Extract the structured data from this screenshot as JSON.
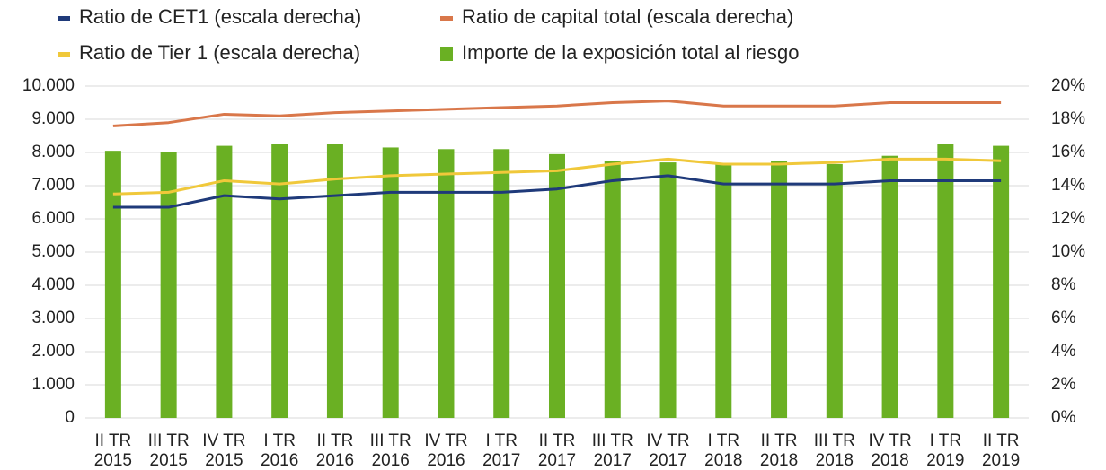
{
  "chart_data": {
    "type": "bar-line",
    "categories": [
      [
        "II TR",
        "2015"
      ],
      [
        "III TR",
        "2015"
      ],
      [
        "IV TR",
        "2015"
      ],
      [
        "I TR",
        "2016"
      ],
      [
        "II TR",
        "2016"
      ],
      [
        "III TR",
        "2016"
      ],
      [
        "IV TR",
        "2016"
      ],
      [
        "I TR",
        "2017"
      ],
      [
        "II TR",
        "2017"
      ],
      [
        "III TR",
        "2017"
      ],
      [
        "IV TR",
        "2017"
      ],
      [
        "I TR",
        "2018"
      ],
      [
        "II TR",
        "2018"
      ],
      [
        "III TR",
        "2018"
      ],
      [
        "IV TR",
        "2018"
      ],
      [
        "I TR",
        "2019"
      ],
      [
        "II TR",
        "2019"
      ]
    ],
    "series": [
      {
        "name": "Ratio de CET1 (escala derecha)",
        "type": "line",
        "axis": "y2",
        "color": "#1f3a7a",
        "values": [
          12.7,
          12.7,
          13.4,
          13.2,
          13.4,
          13.6,
          13.6,
          13.6,
          13.8,
          14.3,
          14.6,
          14.1,
          14.1,
          14.1,
          14.3,
          14.3,
          14.3
        ]
      },
      {
        "name": "Ratio de capital total (escala derecha)",
        "type": "line",
        "axis": "y2",
        "color": "#d9774a",
        "values": [
          17.6,
          17.8,
          18.3,
          18.2,
          18.4,
          18.5,
          18.6,
          18.7,
          18.8,
          19.0,
          19.1,
          18.8,
          18.8,
          18.8,
          19.0,
          19.0,
          19.0
        ]
      },
      {
        "name": "Ratio de Tier 1 (escala derecha)",
        "type": "line",
        "axis": "y2",
        "color": "#f0c83a",
        "values": [
          13.5,
          13.6,
          14.3,
          14.1,
          14.4,
          14.6,
          14.7,
          14.8,
          14.9,
          15.3,
          15.6,
          15.3,
          15.3,
          15.4,
          15.6,
          15.6,
          15.5
        ]
      },
      {
        "name": "Importe de la exposición total al riesgo",
        "type": "bar",
        "axis": "y",
        "color": "#6ab023",
        "values": [
          8050,
          8000,
          8200,
          8250,
          8250,
          8150,
          8100,
          8100,
          7950,
          7750,
          7700,
          7650,
          7750,
          7650,
          7900,
          8250,
          8200
        ]
      }
    ],
    "ylim": [
      0,
      10000
    ],
    "yticks": [
      0,
      {
        "value": 1000,
        "label": "1.000"
      },
      {
        "value": 2000,
        "label": "2.000"
      },
      {
        "value": 3000,
        "label": "3.000"
      },
      {
        "value": 4000,
        "label": "4.000"
      },
      {
        "value": 5000,
        "label": "5.000"
      },
      {
        "value": 6000,
        "label": "6.000"
      },
      {
        "value": 7000,
        "label": "7.000"
      },
      {
        "value": 8000,
        "label": "8.000"
      },
      {
        "value": 9000,
        "label": "9.000"
      },
      {
        "value": 10000,
        "label": "10.000"
      }
    ],
    "y2lim": [
      0,
      20
    ],
    "y2ticks": [
      {
        "value": 0,
        "label": "0%"
      },
      {
        "value": 2,
        "label": "2%"
      },
      {
        "value": 4,
        "label": "4%"
      },
      {
        "value": 6,
        "label": "6%"
      },
      {
        "value": 8,
        "label": "8%"
      },
      {
        "value": 10,
        "label": "10%"
      },
      {
        "value": 12,
        "label": "12%"
      },
      {
        "value": 14,
        "label": "14%"
      },
      {
        "value": 16,
        "label": "16%"
      },
      {
        "value": 18,
        "label": "18%"
      },
      {
        "value": 20,
        "label": "20%"
      }
    ],
    "grid": true
  }
}
